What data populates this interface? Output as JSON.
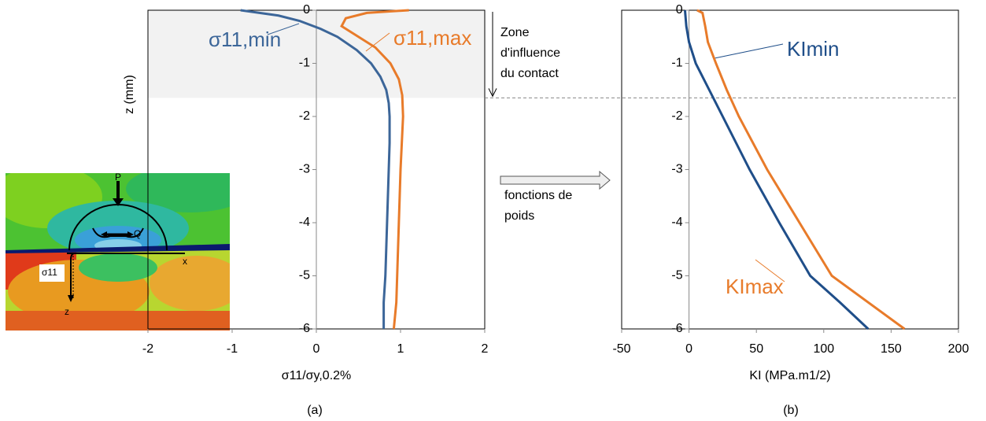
{
  "chart_data": [
    {
      "type": "line",
      "panel_label": "(a)",
      "xlabel": "σ11/σy,0.2%",
      "ylabel": "z (mm)",
      "xlim": [
        -2,
        2
      ],
      "xticks": [
        -2,
        -1,
        0,
        1,
        2
      ],
      "ylim": [
        -6,
        0
      ],
      "yticks": [
        0,
        -1,
        -2,
        -3,
        -4,
        -5,
        -6
      ],
      "zone_depth": -1.65,
      "zone_label": [
        "Zone",
        "d'influence",
        "du contact"
      ],
      "series": [
        {
          "name": "σ11,min",
          "color": "#3c6699",
          "x": [
            -0.9,
            -0.45,
            -0.2,
            0.05,
            0.25,
            0.48,
            0.65,
            0.76,
            0.83,
            0.86,
            0.87,
            0.87,
            0.86,
            0.84,
            0.82,
            0.8,
            0.8
          ],
          "y": [
            0,
            -0.1,
            -0.2,
            -0.35,
            -0.5,
            -0.75,
            -1,
            -1.25,
            -1.5,
            -1.75,
            -2,
            -2.5,
            -3,
            -4,
            -5,
            -5.5,
            -6
          ]
        },
        {
          "name": "σ11,max",
          "color": "#e87b2a",
          "x": [
            1.1,
            0.6,
            0.35,
            0.3,
            0.45,
            0.7,
            0.88,
            0.98,
            1.02,
            1.03,
            1.0,
            0.98,
            0.96,
            0.95,
            0.92
          ],
          "y": [
            0,
            -0.05,
            -0.15,
            -0.3,
            -0.45,
            -0.7,
            -1,
            -1.3,
            -1.6,
            -2,
            -3,
            -4,
            -5,
            -5.5,
            -6
          ]
        }
      ]
    },
    {
      "type": "line",
      "panel_label": "(b)",
      "xlabel": "KI (MPa.m1/2)",
      "xlim": [
        -50,
        200
      ],
      "xticks": [
        -50,
        0,
        50,
        100,
        150,
        200
      ],
      "ylim": [
        -6,
        0
      ],
      "yticks": [
        0,
        -1,
        -2,
        -3,
        -4,
        -5,
        -6
      ],
      "arrow_label": [
        "fonctions de",
        "poids"
      ],
      "series": [
        {
          "name": "KImin",
          "color": "#1f4e89",
          "x": [
            -3,
            -2,
            0,
            5,
            15,
            25,
            45,
            67,
            90,
            112,
            133
          ],
          "y": [
            0,
            -0.3,
            -0.6,
            -1,
            -1.5,
            -2,
            -3,
            -4,
            -5,
            -5.5,
            -6
          ]
        },
        {
          "name": "KImax",
          "color": "#e87b2a",
          "x": [
            6,
            10,
            12,
            14,
            20,
            28,
            37,
            58,
            82,
            106,
            160
          ],
          "y": [
            0,
            -0.05,
            -0.3,
            -0.6,
            -1,
            -1.5,
            -2,
            -3,
            -4,
            -5,
            -6
          ]
        }
      ]
    }
  ],
  "inset": {
    "labels": [
      "P",
      "Q",
      "x",
      "σ11",
      "z"
    ]
  }
}
